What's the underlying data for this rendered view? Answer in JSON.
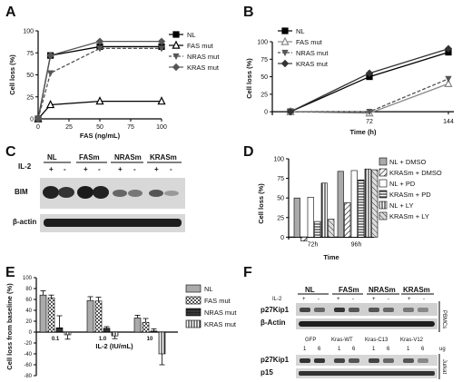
{
  "panels": {
    "A": {
      "label": "A"
    },
    "B": {
      "label": "B"
    },
    "C": {
      "label": "C"
    },
    "D": {
      "label": "D"
    },
    "E": {
      "label": "E"
    },
    "F": {
      "label": "F"
    }
  },
  "chart_data": [
    {
      "id": "A",
      "type": "line",
      "xlabel": "FAS (ng/mL)",
      "ylabel": "Cell loss (%)",
      "xlim": [
        0,
        100
      ],
      "ylim": [
        0,
        100
      ],
      "xticks": [
        0,
        25,
        50,
        75,
        100
      ],
      "yticks": [
        0,
        25,
        50,
        75,
        100
      ],
      "legend_position": "right",
      "x": [
        0,
        10,
        50,
        100
      ],
      "series": [
        {
          "name": "NL",
          "values": [
            0,
            72,
            82,
            82
          ],
          "marker": "square",
          "dash": "solid",
          "color": "#000000"
        },
        {
          "name": "FAS mut",
          "values": [
            0,
            16,
            20,
            20
          ],
          "marker": "triangle-open",
          "dash": "solid",
          "color": "#000000"
        },
        {
          "name": "NRAS mut",
          "values": [
            0,
            52,
            80,
            80
          ],
          "marker": "triangle-down",
          "dash": "dashed",
          "color": "#555555"
        },
        {
          "name": "KRAS mut",
          "values": [
            0,
            72,
            88,
            88
          ],
          "marker": "diamond",
          "dash": "solid",
          "color": "#555555"
        }
      ]
    },
    {
      "id": "B",
      "type": "line",
      "xlabel": "Time (h)",
      "ylabel": "Cell loss (%)",
      "ylim": [
        -5,
        100
      ],
      "xticks": [
        72,
        144
      ],
      "yticks": [
        0,
        25,
        50,
        75,
        100
      ],
      "legend_position": "top-left",
      "x": [
        0,
        72,
        144
      ],
      "series": [
        {
          "name": "NL",
          "values": [
            0,
            50,
            85
          ],
          "marker": "square",
          "dash": "solid",
          "color": "#000000"
        },
        {
          "name": "FAS mut",
          "values": [
            0,
            -2,
            40
          ],
          "marker": "triangle-open",
          "dash": "solid",
          "color": "#888888"
        },
        {
          "name": "NRAS mut",
          "values": [
            0,
            0,
            47
          ],
          "marker": "triangle-down",
          "dash": "dashed",
          "color": "#555555"
        },
        {
          "name": "KRAS mut",
          "values": [
            0,
            55,
            90
          ],
          "marker": "diamond",
          "dash": "solid",
          "color": "#333333"
        }
      ]
    },
    {
      "id": "D",
      "type": "bar",
      "xlabel": "Time",
      "ylabel": "Cell loss (%)",
      "ylim": [
        -10,
        100
      ],
      "yticks": [
        0,
        25,
        50,
        75,
        100
      ],
      "categories": [
        "72h",
        "96h"
      ],
      "legend_position": "right",
      "series": [
        {
          "name": "NL + DMSO",
          "values": [
            50,
            84
          ],
          "pattern": "gray"
        },
        {
          "name": "KRASm + DMSO",
          "values": [
            -5,
            44
          ],
          "pattern": "hatch"
        },
        {
          "name": "NL + PD",
          "values": [
            51,
            85
          ],
          "pattern": "white"
        },
        {
          "name": "KRASm + PD",
          "values": [
            20,
            73
          ],
          "pattern": "hlines"
        },
        {
          "name": "NL + LY",
          "values": [
            69,
            87
          ],
          "pattern": "vlines"
        },
        {
          "name": "KRASm + LY",
          "values": [
            23,
            86
          ],
          "pattern": "diag"
        }
      ]
    },
    {
      "id": "E",
      "type": "bar",
      "xlabel": "IL-2 (IU/mL)",
      "ylabel": "Cell loss from baseline (%)",
      "ylim": [
        -80,
        100
      ],
      "yticks": [
        -80,
        -60,
        -40,
        -20,
        0,
        20,
        40,
        60,
        80,
        100
      ],
      "categories": [
        "0.1",
        "1.0",
        "10"
      ],
      "legend_position": "right",
      "series": [
        {
          "name": "NL",
          "values": [
            68,
            58,
            26
          ],
          "errors": [
            8,
            7,
            5
          ],
          "pattern": "gray"
        },
        {
          "name": "FAS mut",
          "values": [
            63,
            57,
            18
          ],
          "errors": [
            5,
            7,
            7
          ],
          "pattern": "check"
        },
        {
          "name": "NRAS mut",
          "values": [
            8,
            7,
            2
          ],
          "errors": [
            22,
            3,
            4
          ],
          "pattern": "dark"
        },
        {
          "name": "KRAS mut",
          "values": [
            -5,
            -7,
            -40
          ],
          "errors": [
            8,
            5,
            20
          ],
          "pattern": "vlines"
        }
      ]
    }
  ],
  "blots": {
    "C": {
      "il2_label": "IL-2",
      "groups": [
        "NL",
        "FASm",
        "NRASm",
        "KRASm"
      ],
      "signs": [
        "+",
        "-",
        "+",
        "-",
        "+",
        "-",
        "+",
        "-"
      ],
      "rows": [
        "BIM",
        "β-actin"
      ]
    },
    "F": {
      "il2_label": "IL-2",
      "groups": [
        "NL",
        "FASm",
        "NRASm",
        "KRASm"
      ],
      "signs": [
        "+",
        "-",
        "+",
        "-",
        "+",
        "-",
        "+",
        "-"
      ],
      "rows": [
        "p27Kip1",
        "β-Actin"
      ],
      "side_label": "PBMCs",
      "groups2": [
        "GFP",
        "Kras-WT",
        "Kras-C13",
        "Kras-V12"
      ],
      "doses": [
        "1",
        "6",
        "1",
        "6",
        "1",
        "6",
        "1",
        "6"
      ],
      "unit": "ug",
      "rows2": [
        "p27Kip1",
        "p15"
      ],
      "side_label2": "Jurkat"
    }
  }
}
